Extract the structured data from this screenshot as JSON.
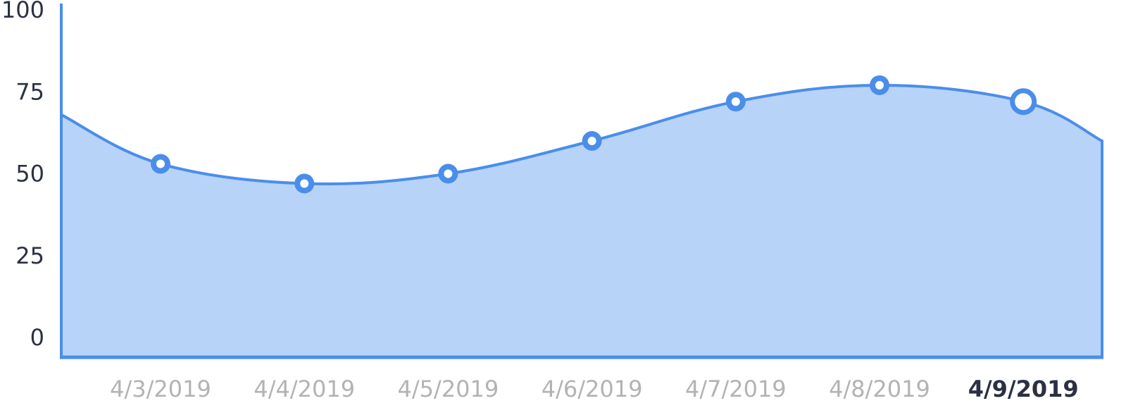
{
  "chart_data": {
    "type": "area",
    "x": [
      "4/3/2019",
      "4/4/2019",
      "4/5/2019",
      "4/6/2019",
      "4/7/2019",
      "4/8/2019",
      "4/9/2019"
    ],
    "values": [
      53,
      47,
      50,
      60,
      72,
      77,
      72
    ],
    "edge_values": {
      "start": 68,
      "end": 60
    },
    "selected_index": 6,
    "ylim": [
      0,
      100
    ],
    "y_ticks": [
      0,
      25,
      50,
      75,
      100
    ],
    "title": "",
    "xlabel": "",
    "ylabel": "",
    "grid": false,
    "colors": {
      "line": "#4a8eea",
      "fill": "#b8d3f8",
      "marker_center": "#ffffff",
      "axis_text": "#2b3142",
      "x_tick_text": "#b3b3b3",
      "x_tick_selected": "#2b3142"
    }
  }
}
